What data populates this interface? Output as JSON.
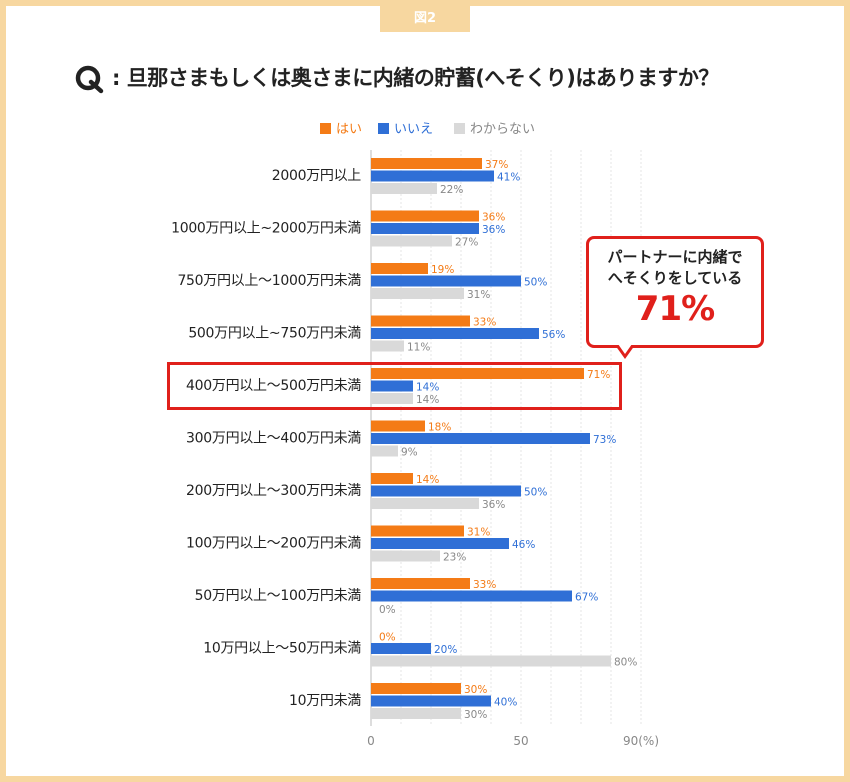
{
  "figure_label": "図2",
  "question": ": 旦那さまもしくは奥さまに内緒の貯蓄(へそくり)はありますか？",
  "legend": [
    {
      "label": "はい",
      "color": "#f47b16"
    },
    {
      "label": "いいえ",
      "color": "#2f6fd6"
    },
    {
      "label": "わからない",
      "color": "#d9d9d9"
    }
  ],
  "callout": {
    "line1": "パートナーに内緒で",
    "line2": "へそくりをしている",
    "value": "71%"
  },
  "chart_data": {
    "type": "bar",
    "orientation": "horizontal",
    "categories": [
      "2000万円以上",
      "1000万円以上~2000万円未満",
      "750万円以上～1000万円未満",
      "500万円以上~750万円未満",
      "400万円以上～500万円未満",
      "300万円以上～400万円未満",
      "200万円以上～300万円未満",
      "100万円以上～200万円未満",
      "50万円以上～100万円未満",
      "10万円以上～50万円未満",
      "10万円未満"
    ],
    "series": [
      {
        "name": "はい",
        "color": "#f47b16",
        "label_color": "#f47b16",
        "values": [
          37,
          36,
          19,
          33,
          71,
          18,
          14,
          31,
          33,
          0,
          30
        ]
      },
      {
        "name": "いいえ",
        "color": "#2f6fd6",
        "label_color": "#2f6fd6",
        "values": [
          41,
          36,
          50,
          56,
          14,
          73,
          50,
          46,
          67,
          20,
          40
        ]
      },
      {
        "name": "わからない",
        "color": "#d9d9d9",
        "label_color": "#888888",
        "values": [
          22,
          27,
          31,
          11,
          14,
          9,
          36,
          23,
          0,
          80,
          30
        ]
      }
    ],
    "xlim": [
      0,
      90
    ],
    "ticks": [
      {
        "value": 0,
        "label": "0"
      },
      {
        "value": 50,
        "label": "50"
      },
      {
        "value": 90,
        "label": "90(%)"
      }
    ],
    "grid": true,
    "highlighted_category": "400万円以上～500万円未満"
  }
}
